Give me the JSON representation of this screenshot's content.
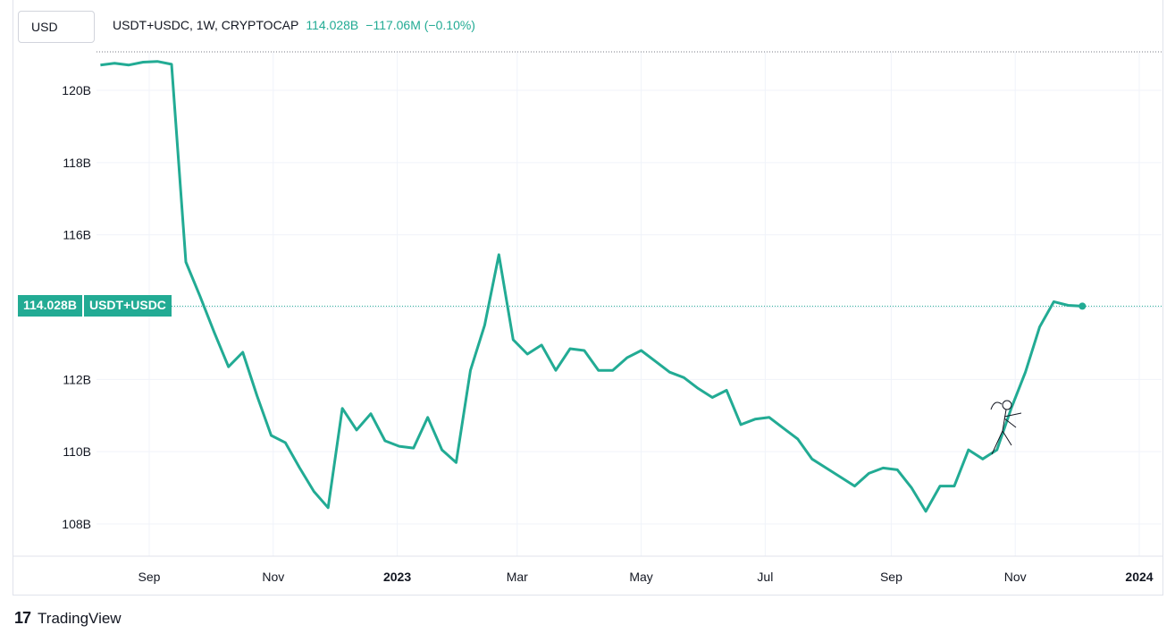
{
  "currency_label": "USD",
  "legend": {
    "symbol": "USDT+USDC, 1W, CRYPTOCAP",
    "value": "114.028B",
    "change": "−117.06M (−0.10%)"
  },
  "price_tag": {
    "value": "114.028B",
    "name": "USDT+USDC"
  },
  "brand": {
    "logo": "𝟭𝟳",
    "name": "TradingView"
  },
  "colors": {
    "line": "#22ab94",
    "grid": "#f0f3fa",
    "text": "#131722"
  },
  "chart_data": {
    "type": "line",
    "yticks": [
      "120B",
      "118B",
      "116B",
      "114B",
      "112B",
      "110B",
      "108B"
    ],
    "ytick_values": [
      120,
      118,
      116,
      114,
      112,
      110,
      108
    ],
    "xticks": [
      {
        "label": "Sep",
        "bold": false
      },
      {
        "label": "Nov",
        "bold": false
      },
      {
        "label": "2023",
        "bold": true
      },
      {
        "label": "Mar",
        "bold": false
      },
      {
        "label": "May",
        "bold": false
      },
      {
        "label": "Jul",
        "bold": false
      },
      {
        "label": "Sep",
        "bold": false
      },
      {
        "label": "Nov",
        "bold": false
      },
      {
        "label": "2024",
        "bold": true
      }
    ],
    "ylim": [
      107.0,
      121.0
    ],
    "series": [
      {
        "x": [
          "2022-08-08",
          "2022-08-15",
          "2022-08-22",
          "2022-08-29",
          "2022-09-05",
          "2022-09-12",
          "2022-09-19",
          "2022-09-26",
          "2022-10-03",
          "2022-10-10",
          "2022-10-17",
          "2022-10-24",
          "2022-10-31",
          "2022-11-07",
          "2022-11-14",
          "2022-11-21",
          "2022-11-28",
          "2022-12-05",
          "2022-12-12",
          "2022-12-19",
          "2022-12-26",
          "2023-01-02",
          "2023-01-09",
          "2023-01-16",
          "2023-01-23",
          "2023-01-30",
          "2023-02-06",
          "2023-02-13",
          "2023-02-20",
          "2023-02-27",
          "2023-03-06",
          "2023-03-13",
          "2023-03-20",
          "2023-03-27",
          "2023-04-03",
          "2023-04-10",
          "2023-04-17",
          "2023-04-24",
          "2023-05-01",
          "2023-05-08",
          "2023-05-15",
          "2023-05-22",
          "2023-05-29",
          "2023-06-05",
          "2023-06-12",
          "2023-06-19",
          "2023-06-26",
          "2023-07-03",
          "2023-07-10",
          "2023-07-17",
          "2023-07-24",
          "2023-07-31",
          "2023-08-07",
          "2023-08-14",
          "2023-08-21",
          "2023-08-28",
          "2023-09-04",
          "2023-09-11",
          "2023-09-18",
          "2023-09-25",
          "2023-10-02",
          "2023-10-09",
          "2023-10-16",
          "2023-10-23",
          "2023-10-30",
          "2023-11-06",
          "2023-11-13",
          "2023-11-20",
          "2023-11-27",
          "2023-12-04"
        ],
        "values": [
          120.7,
          120.75,
          120.7,
          120.78,
          120.8,
          120.72,
          115.25,
          114.3,
          113.3,
          112.35,
          112.75,
          111.55,
          110.45,
          110.25,
          109.55,
          108.9,
          108.45,
          111.2,
          110.6,
          111.05,
          110.3,
          110.15,
          110.1,
          110.95,
          110.05,
          109.7,
          112.25,
          113.5,
          115.45,
          113.1,
          112.7,
          112.95,
          112.25,
          112.85,
          112.8,
          112.25,
          112.25,
          112.6,
          112.8,
          112.5,
          112.2,
          112.05,
          111.75,
          111.5,
          111.7,
          110.75,
          110.9,
          110.95,
          110.65,
          110.35,
          109.8,
          109.55,
          109.3,
          109.05,
          109.4,
          109.55,
          109.5,
          109.0,
          108.35,
          109.05,
          109.05,
          110.05,
          109.8,
          110.05,
          111.2,
          112.2,
          113.45,
          114.15,
          114.05,
          114.028
        ]
      }
    ]
  }
}
